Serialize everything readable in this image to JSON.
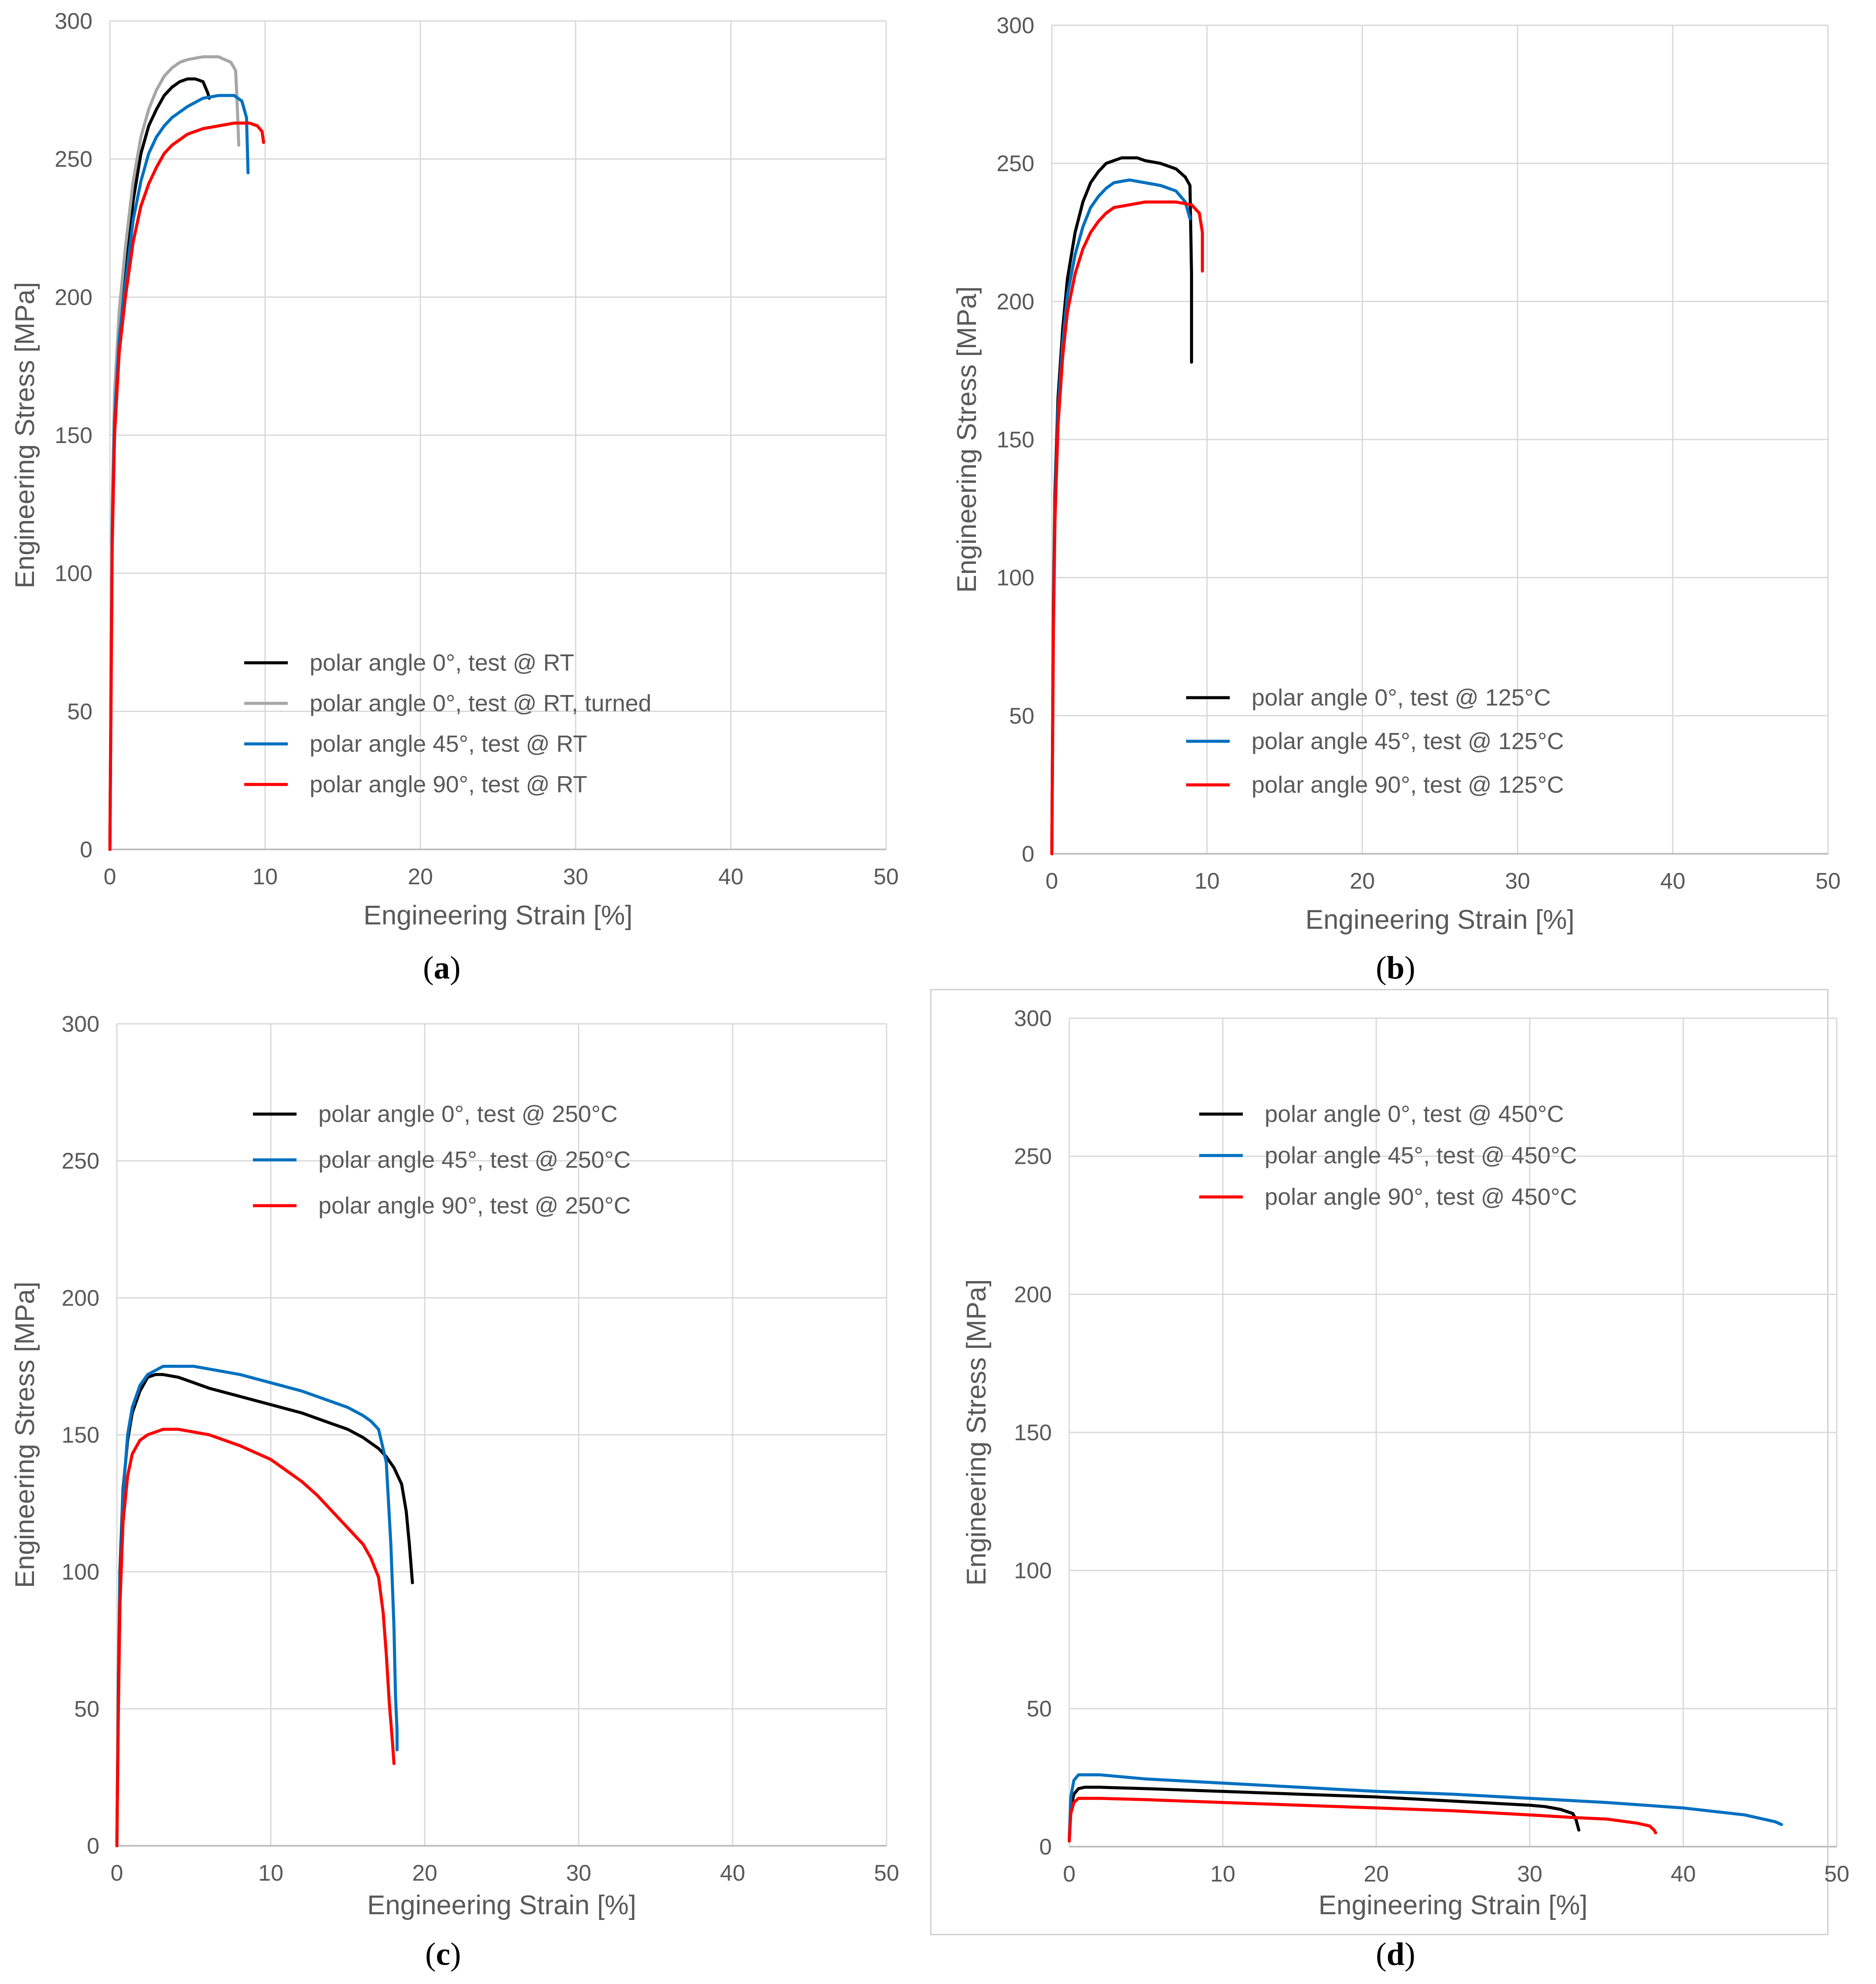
{
  "colors": {
    "black": "#000000",
    "gray": "#a6a6a6",
    "blue": "#0070c0",
    "red": "#ff0000",
    "grid": "#d9d9d9",
    "axis": "#bfbfbf",
    "text": "#595959"
  },
  "chart_data": [
    {
      "id": "a",
      "type": "line",
      "caption_label": "a",
      "xlabel": "Engineering Strain [%]",
      "ylabel": "Engineering Stress [MPa]",
      "xlim": [
        0,
        50
      ],
      "ylim": [
        0,
        300
      ],
      "xticks": [
        "0",
        "10",
        "20",
        "30",
        "40",
        "50"
      ],
      "yticks": [
        "0",
        "50",
        "100",
        "150",
        "200",
        "250",
        "300"
      ],
      "legend": "center-left",
      "series": [
        {
          "name": "polar angle 0°, test @ RT",
          "color": "#000000",
          "x": [
            0,
            0.15,
            0.3,
            0.6,
            1,
            1.5,
            2,
            2.5,
            3,
            3.5,
            4,
            4.5,
            5,
            5.5,
            6,
            6.3,
            6.4
          ],
          "y": [
            0,
            120,
            160,
            190,
            210,
            235,
            252,
            262,
            268,
            273,
            276,
            278,
            279,
            279,
            278,
            274,
            272
          ]
        },
        {
          "name": "polar angle 0°, test @ RT, turned",
          "color": "#a6a6a6",
          "x": [
            0,
            0.15,
            0.3,
            0.6,
            1,
            1.5,
            2,
            2.5,
            3,
            3.5,
            4,
            4.5,
            5,
            6,
            7,
            7.8,
            8.1,
            8.2,
            8.3
          ],
          "y": [
            0,
            125,
            165,
            195,
            218,
            242,
            258,
            268,
            275,
            280,
            283,
            285,
            286,
            287,
            287,
            285,
            282,
            270,
            255
          ]
        },
        {
          "name": "polar angle 45°, test @ RT",
          "color": "#0070c0",
          "x": [
            0,
            0.15,
            0.3,
            0.6,
            1,
            1.5,
            2,
            2.5,
            3,
            3.5,
            4,
            5,
            6,
            7,
            8,
            8.5,
            8.8,
            8.9
          ],
          "y": [
            0,
            115,
            155,
            185,
            205,
            228,
            242,
            252,
            258,
            262,
            265,
            269,
            272,
            273,
            273,
            271,
            265,
            245
          ]
        },
        {
          "name": "polar angle 90°, test @ RT",
          "color": "#ff0000",
          "x": [
            0,
            0.15,
            0.3,
            0.6,
            1,
            1.5,
            2,
            2.5,
            3,
            3.5,
            4,
            5,
            6,
            7,
            8,
            9,
            9.5,
            9.8,
            9.9
          ],
          "y": [
            0,
            110,
            150,
            180,
            200,
            220,
            233,
            241,
            247,
            252,
            255,
            259,
            261,
            262,
            263,
            263,
            262,
            260,
            256
          ]
        }
      ]
    },
    {
      "id": "b",
      "type": "line",
      "caption_label": "b",
      "xlabel": "Engineering Strain [%]",
      "ylabel": "Engineering Stress [MPa]",
      "xlim": [
        0,
        50
      ],
      "ylim": [
        0,
        300
      ],
      "xticks": [
        "0",
        "10",
        "20",
        "30",
        "40",
        "50"
      ],
      "yticks": [
        "0",
        "50",
        "100",
        "150",
        "200",
        "250",
        "300"
      ],
      "legend": "bottom-center",
      "series": [
        {
          "name": "polar angle 0°, test @ 125°C",
          "color": "#000000",
          "x": [
            0,
            0.1,
            0.2,
            0.4,
            0.7,
            1,
            1.5,
            2,
            2.5,
            3,
            3.5,
            4,
            4.5,
            5,
            5.5,
            6,
            7,
            8,
            8.6,
            8.9,
            9.0,
            9.0
          ],
          "y": [
            0,
            90,
            130,
            165,
            190,
            208,
            225,
            236,
            243,
            247,
            250,
            251,
            252,
            252,
            252,
            251,
            250,
            248,
            245,
            242,
            210,
            178
          ]
        },
        {
          "name": "polar angle 45°, test @ 125°C",
          "color": "#0070c0",
          "x": [
            0,
            0.1,
            0.2,
            0.4,
            0.7,
            1,
            1.5,
            2,
            2.5,
            3,
            3.5,
            4,
            5,
            6,
            7,
            8,
            8.6,
            8.9
          ],
          "y": [
            0,
            85,
            125,
            160,
            185,
            202,
            217,
            227,
            234,
            238,
            241,
            243,
            244,
            243,
            242,
            240,
            236,
            230
          ]
        },
        {
          "name": "polar angle 90°, test @ 125°C",
          "color": "#ff0000",
          "x": [
            0,
            0.1,
            0.2,
            0.4,
            0.7,
            1,
            1.5,
            2,
            2.5,
            3,
            3.5,
            4,
            5,
            6,
            7,
            8,
            9,
            9.5,
            9.7,
            9.7
          ],
          "y": [
            0,
            80,
            120,
            155,
            180,
            196,
            210,
            219,
            225,
            229,
            232,
            234,
            235,
            236,
            236,
            236,
            235,
            232,
            225,
            211
          ]
        }
      ]
    },
    {
      "id": "c",
      "type": "line",
      "caption_label": "c",
      "xlabel": "Engineering Strain [%]",
      "ylabel": "Engineering Stress [MPa]",
      "xlim": [
        0,
        50
      ],
      "ylim": [
        0,
        300
      ],
      "xticks": [
        "0",
        "10",
        "20",
        "30",
        "40",
        "50"
      ],
      "yticks": [
        "0",
        "50",
        "100",
        "150",
        "200",
        "250",
        "300"
      ],
      "legend": "top-center",
      "series": [
        {
          "name": "polar angle 0°, test @ 250°C",
          "color": "#000000",
          "x": [
            0,
            0.1,
            0.2,
            0.4,
            0.7,
            1,
            1.5,
            2,
            2.5,
            3,
            4,
            5,
            6,
            8,
            10,
            12,
            14,
            15,
            16,
            17,
            17.5,
            18,
            18.5,
            18.8,
            19.0,
            19.2
          ],
          "y": [
            0,
            60,
            100,
            130,
            148,
            158,
            166,
            171,
            172,
            172,
            171,
            169,
            167,
            164,
            161,
            158,
            154,
            152,
            149,
            145,
            142,
            138,
            132,
            122,
            110,
            96
          ]
        },
        {
          "name": "polar angle 45°, test @ 250°C",
          "color": "#0070c0",
          "x": [
            0,
            0.1,
            0.2,
            0.4,
            0.7,
            1,
            1.5,
            2,
            3,
            4,
            5,
            6,
            8,
            10,
            12,
            14,
            15,
            16,
            16.5,
            17,
            17.5,
            17.8,
            18.0,
            18.1,
            18.2,
            18.2
          ],
          "y": [
            0,
            55,
            95,
            128,
            150,
            160,
            168,
            172,
            175,
            175,
            175,
            174,
            172,
            169,
            166,
            162,
            160,
            157,
            155,
            152,
            140,
            110,
            80,
            55,
            42,
            35
          ]
        },
        {
          "name": "polar angle 90°, test @ 250°C",
          "color": "#ff0000",
          "x": [
            0,
            0.1,
            0.2,
            0.4,
            0.7,
            1,
            1.5,
            2,
            3,
            4,
            5,
            6,
            8,
            10,
            12,
            13,
            14,
            15,
            16,
            16.5,
            17,
            17.3,
            17.5,
            17.7,
            17.9,
            18.0
          ],
          "y": [
            0,
            50,
            88,
            118,
            135,
            143,
            148,
            150,
            152,
            152,
            151,
            150,
            146,
            141,
            133,
            128,
            122,
            116,
            110,
            105,
            98,
            85,
            70,
            52,
            38,
            30
          ]
        }
      ]
    },
    {
      "id": "d",
      "type": "line",
      "caption_label": "d",
      "xlabel": "Engineering Strain [%]",
      "ylabel": "Engineering Stress [MPa]",
      "xlim": [
        0,
        50
      ],
      "ylim": [
        0,
        300
      ],
      "xticks": [
        "0",
        "10",
        "20",
        "30",
        "40",
        "50"
      ],
      "yticks": [
        "0",
        "50",
        "100",
        "150",
        "200",
        "250",
        "300"
      ],
      "legend": "top-center",
      "series": [
        {
          "name": "polar angle 0°, test @ 450°C",
          "color": "#000000",
          "x": [
            0,
            0.1,
            0.3,
            0.6,
            1,
            2,
            5,
            10,
            15,
            20,
            25,
            30,
            31,
            32,
            32.8,
            33.0,
            33.1,
            33.2
          ],
          "y": [
            2,
            14,
            19,
            21,
            21.5,
            21.5,
            21,
            20,
            19,
            18,
            16.5,
            15,
            14.5,
            13.5,
            12,
            10,
            8,
            6
          ]
        },
        {
          "name": "polar angle 45°, test @ 450°C",
          "color": "#0070c0",
          "x": [
            0,
            0.1,
            0.3,
            0.6,
            1,
            2,
            5,
            10,
            15,
            20,
            25,
            30,
            35,
            40,
            44,
            46,
            46.4
          ],
          "y": [
            3,
            18,
            24,
            26,
            26,
            26,
            24.5,
            23,
            21.5,
            20,
            19,
            17.5,
            16,
            14,
            11.5,
            9,
            8
          ]
        },
        {
          "name": "polar angle 90°, test @ 450°C",
          "color": "#ff0000",
          "x": [
            0,
            0.1,
            0.3,
            0.6,
            1,
            2,
            5,
            10,
            15,
            20,
            25,
            30,
            33,
            35,
            37,
            37.8,
            38.1,
            38.2
          ],
          "y": [
            2,
            12,
            16,
            17.5,
            17.5,
            17.5,
            17,
            16,
            15,
            14,
            13,
            11.5,
            10.5,
            10,
            8.5,
            7.5,
            6,
            5
          ]
        }
      ]
    }
  ]
}
